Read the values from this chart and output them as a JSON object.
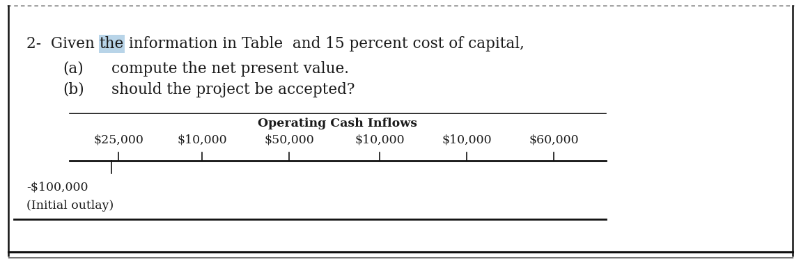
{
  "highlight_color": "#b8d4e8",
  "text_color": "#1a1a1a",
  "bg_color": "#ffffff",
  "dashed_line_color": "#555555",
  "border_color": "#111111",
  "table_header": "Operating Cash Inflows",
  "cash_inflows": [
    "$25,000",
    "$10,000",
    "$50,000",
    "$10,000",
    "$10,000",
    "$60,000"
  ],
  "initial_outlay_label1": "-$100,000",
  "initial_outlay_label2": "(Initial outlay)",
  "fontsize_main": 15.5,
  "fontsize_table": 12.5,
  "fontsize_outlay": 12.5
}
